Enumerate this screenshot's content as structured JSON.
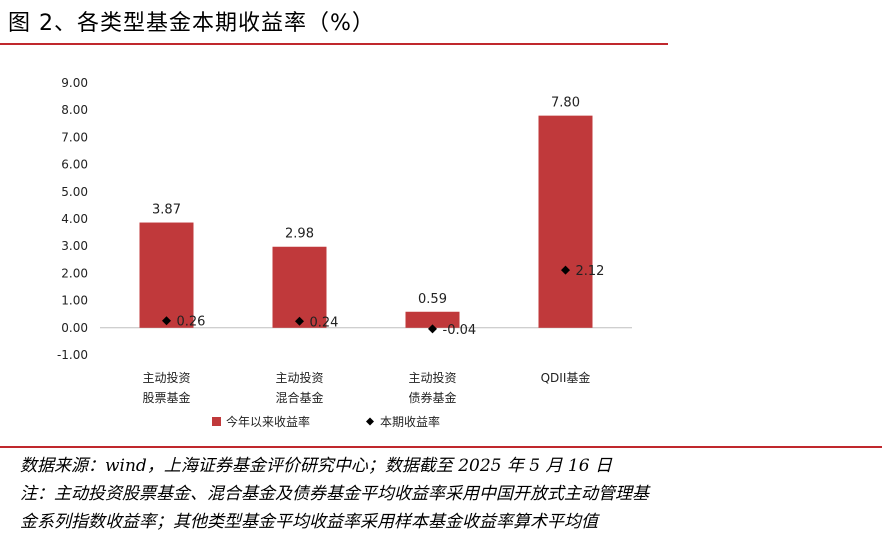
{
  "header": {
    "title": "图 2、各类型基金本期收益率（%）"
  },
  "chart_data": {
    "type": "bar",
    "categories": [
      [
        "主动投资",
        "股票基金"
      ],
      [
        "主动投资",
        "混合基金"
      ],
      [
        "主动投资",
        "债券基金"
      ],
      [
        "QDII基金"
      ]
    ],
    "series": [
      {
        "name": "今年以来收益率",
        "kind": "bar",
        "values": [
          3.87,
          2.98,
          0.59,
          7.8
        ],
        "labels": [
          "3.87",
          "2.98",
          "0.59",
          "7.80"
        ],
        "color": "#c0393b"
      },
      {
        "name": "本期收益率",
        "kind": "marker",
        "values": [
          0.26,
          0.24,
          -0.04,
          2.12
        ],
        "labels": [
          "0.26",
          "0.24",
          "-0.04",
          "2.12"
        ],
        "color": "#000000"
      }
    ],
    "ylim": [
      -1,
      9
    ],
    "yticks": [
      "-1.00",
      "0.00",
      "1.00",
      "2.00",
      "3.00",
      "4.00",
      "5.00",
      "6.00",
      "7.00",
      "8.00",
      "9.00"
    ],
    "legend": "bottom"
  },
  "footer": {
    "source": "数据来源：wind，上海证券基金评价研究中心；数据截至 2025 年 5 月 16 日",
    "note1": "注：主动投资股票基金、混合基金及债券基金平均收益率采用中国开放式主动管理基",
    "note2": "金系列指数收益率；其他类型基金平均收益率采用样本基金收益率算术平均值"
  }
}
